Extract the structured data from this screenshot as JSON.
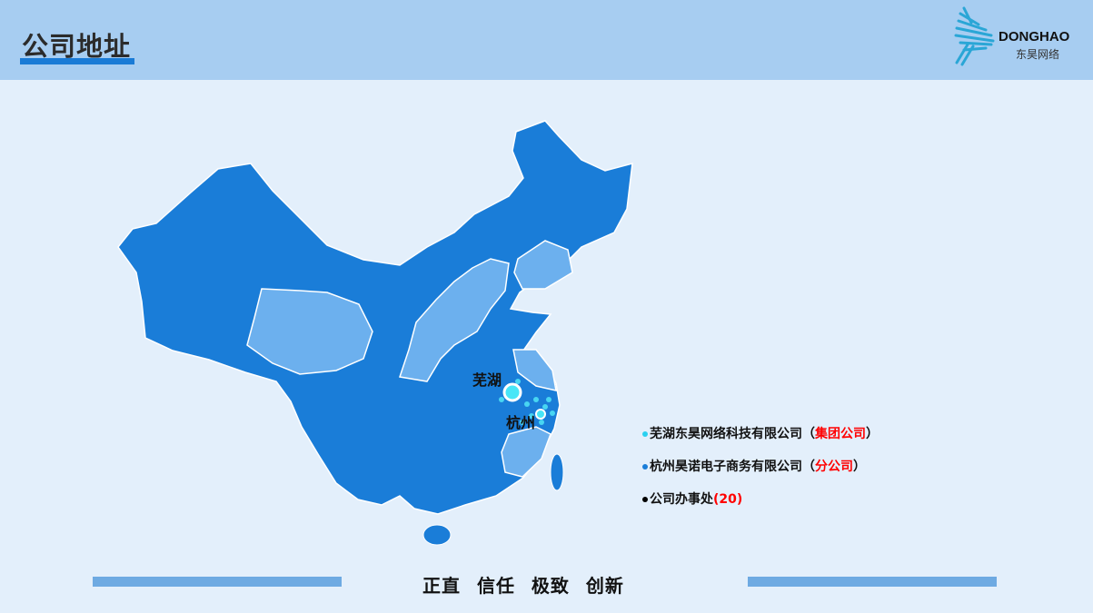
{
  "header": {
    "title": "公司地址",
    "logo_en": "DONGHAO",
    "logo_cn": "东昊网络"
  },
  "map": {
    "cities": [
      {
        "name": "芜湖",
        "role": "group"
      },
      {
        "name": "杭州",
        "role": "branch"
      }
    ],
    "colors": {
      "province_dark": "#1a7dd8",
      "province_light": "#6cb0ee",
      "marker": "#48e6f7"
    }
  },
  "legend": [
    {
      "name": "芜湖东昊网络科技有限公司",
      "tag_open": "（",
      "tag": "集团公司",
      "tag_close": "）",
      "dot": "#2ad0f0"
    },
    {
      "name": "杭州昊诺电子商务有限公司",
      "tag_open": "（",
      "tag": "分公司",
      "tag_close": "）",
      "dot": "#1a7dd8"
    },
    {
      "name": "公司办事处",
      "tag_open": "(",
      "tag": "20",
      "tag_close": ")",
      "dot": "#000000"
    }
  ],
  "footer": {
    "slogan": "正直 信任 极致 创新"
  }
}
